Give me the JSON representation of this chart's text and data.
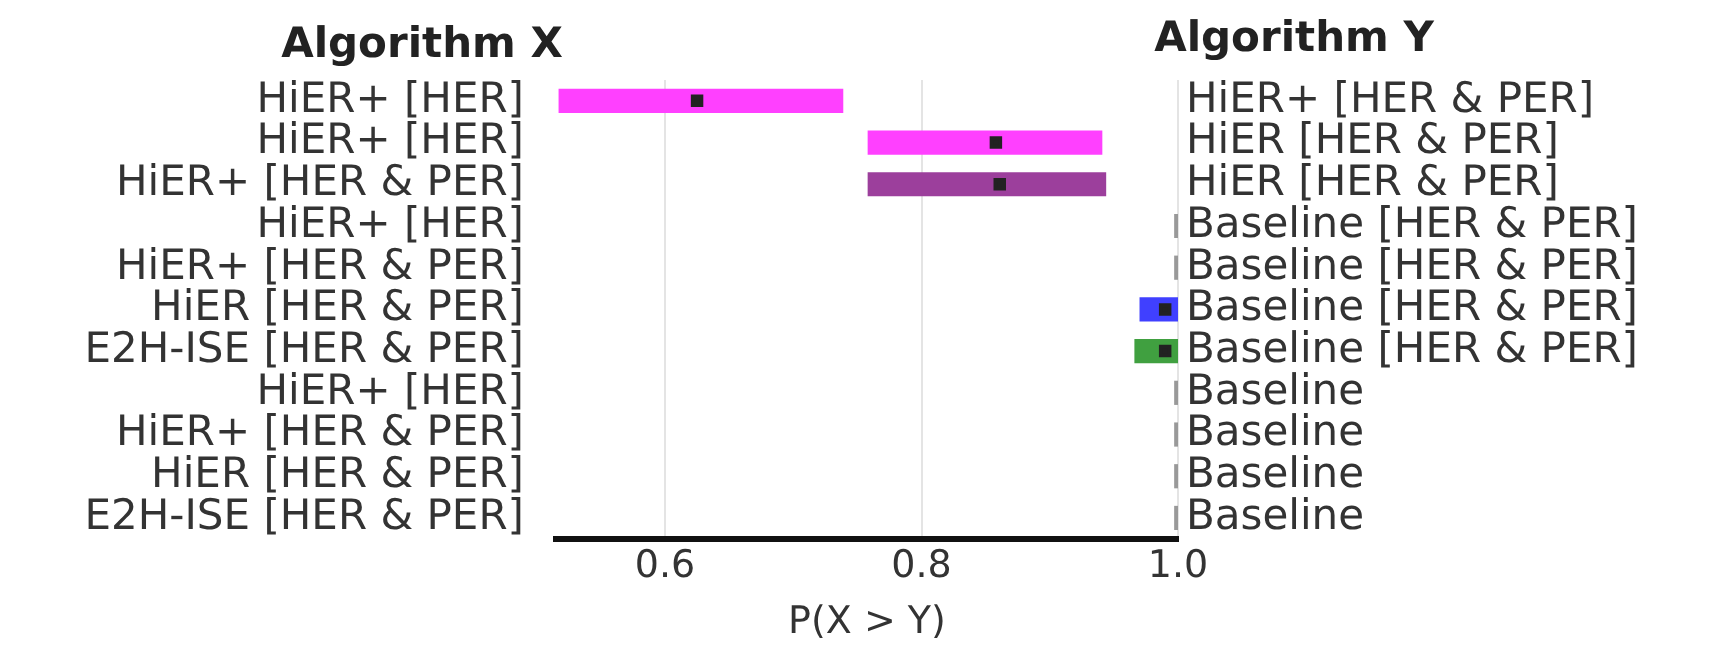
{
  "chart_data": {
    "type": "bar",
    "orientation": "horizontal",
    "categories": [
      "HiER+ [HER]",
      "HiER+ [HER]",
      "HiER+ [HER & PER]",
      "HiER+ [HER]",
      "HiER+ [HER & PER]",
      "HiER [HER & PER]",
      "E2H-ISE [HER & PER]",
      "HiER+ [HER]",
      "HiER+ [HER & PER]",
      "HiER [HER & PER]",
      "E2H-ISE [HER & PER]"
    ],
    "y2_categories": [
      "HiER+ [HER & PER]",
      "HiER [HER & PER]",
      "HiER [HER & PER]",
      "Baseline [HER & PER]",
      "Baseline [HER & PER]",
      "Baseline [HER & PER]",
      "Baseline [HER & PER]",
      "Baseline",
      "Baseline",
      "Baseline",
      "Baseline"
    ],
    "ylabel": "Algorithm X",
    "y2label": "Algorithm Y",
    "xlabel": "P(X > Y)",
    "series": [
      {
        "type": "bar",
        "base": [
          0.517,
          0.758,
          0.758,
          0.997,
          0.997,
          0.97,
          0.966,
          0.997,
          0.997,
          0.997,
          0.997
        ],
        "values": [
          0.222,
          0.183,
          0.186,
          0.003,
          0.003,
          0.03,
          0.034,
          0.003,
          0.003,
          0.003,
          0.003
        ],
        "colors": [
          "#ff40ff",
          "#ff40ff",
          "#9c3f9c",
          "#999999",
          "#999999",
          "#4040ff",
          "#40a040",
          "#999999",
          "#999999",
          "#999999",
          "#999999"
        ]
      },
      {
        "type": "scatter",
        "values": [
          0.625,
          0.858,
          0.861,
          null,
          null,
          0.99,
          0.99,
          null,
          null,
          null,
          null
        ],
        "color": "#222222"
      }
    ],
    "xlim": [
      0.515,
      1.0
    ],
    "xticks": [
      0.6,
      0.8,
      {
        "value": 1.0,
        "label": "1.0"
      }
    ],
    "grid": "x",
    "marker": "square"
  }
}
